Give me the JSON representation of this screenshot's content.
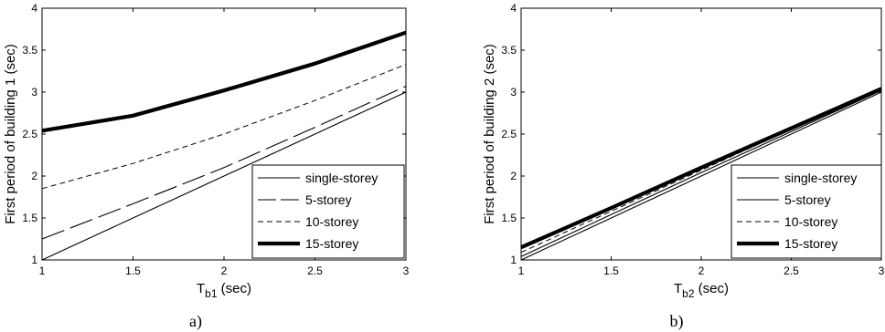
{
  "chart_data": [
    {
      "type": "line",
      "panel_label": "a)",
      "xlabel_main": "T",
      "xlabel_sub": "b1",
      "xlabel_unit": " (sec)",
      "ylabel": "First period of building 1 (sec)",
      "xlim": [
        1,
        3
      ],
      "ylim": [
        1,
        4
      ],
      "xticks": [
        "1",
        "1.5",
        "2",
        "2.5",
        "3"
      ],
      "yticks": [
        "1",
        "1.5",
        "2",
        "2.5",
        "3",
        "3.5",
        "4"
      ],
      "legend_position": "lower-right",
      "series": [
        {
          "name": "single-storey",
          "style": "solid",
          "x": [
            1,
            1.5,
            2,
            2.5,
            3
          ],
          "y": [
            1.0,
            1.5,
            2.0,
            2.5,
            3.0
          ]
        },
        {
          "name": "5-storey",
          "style": "longdash",
          "x": [
            1,
            1.5,
            2,
            2.5,
            3
          ],
          "y": [
            1.25,
            1.67,
            2.1,
            2.58,
            3.07
          ]
        },
        {
          "name": "10-storey",
          "style": "dash",
          "x": [
            1,
            1.5,
            2,
            2.5,
            3
          ],
          "y": [
            1.85,
            2.15,
            2.5,
            2.9,
            3.33
          ]
        },
        {
          "name": "15-storey",
          "style": "thick",
          "x": [
            1,
            1.5,
            2,
            2.5,
            3
          ],
          "y": [
            2.54,
            2.72,
            3.02,
            3.34,
            3.71
          ]
        }
      ]
    },
    {
      "type": "line",
      "panel_label": "b)",
      "xlabel_main": "T",
      "xlabel_sub": "b2",
      "xlabel_unit": " (sec)",
      "ylabel": "First period of building 2 (sec)",
      "xlim": [
        1,
        3
      ],
      "ylim": [
        1,
        4
      ],
      "xticks": [
        "1",
        "1.5",
        "2",
        "2.5",
        "3"
      ],
      "yticks": [
        "1",
        "1.5",
        "2",
        "2.5",
        "3",
        "3.5",
        "4"
      ],
      "legend_position": "lower-right",
      "series": [
        {
          "name": "single-storey",
          "style": "solid",
          "x": [
            1,
            1.5,
            2,
            2.5,
            3
          ],
          "y": [
            1.0,
            1.5,
            2.0,
            2.5,
            3.0
          ]
        },
        {
          "name": "5-storey",
          "style": "solid",
          "x": [
            1,
            1.5,
            2,
            2.5,
            3
          ],
          "y": [
            1.04,
            1.54,
            2.04,
            2.53,
            3.02
          ]
        },
        {
          "name": "10-storey",
          "style": "dash",
          "x": [
            1,
            1.5,
            2,
            2.5,
            3
          ],
          "y": [
            1.09,
            1.58,
            2.07,
            2.56,
            3.04
          ]
        },
        {
          "name": "15-storey",
          "style": "thick",
          "x": [
            1,
            1.5,
            2,
            2.5,
            3
          ],
          "y": [
            1.15,
            1.62,
            2.1,
            2.57,
            3.04
          ]
        }
      ]
    }
  ]
}
